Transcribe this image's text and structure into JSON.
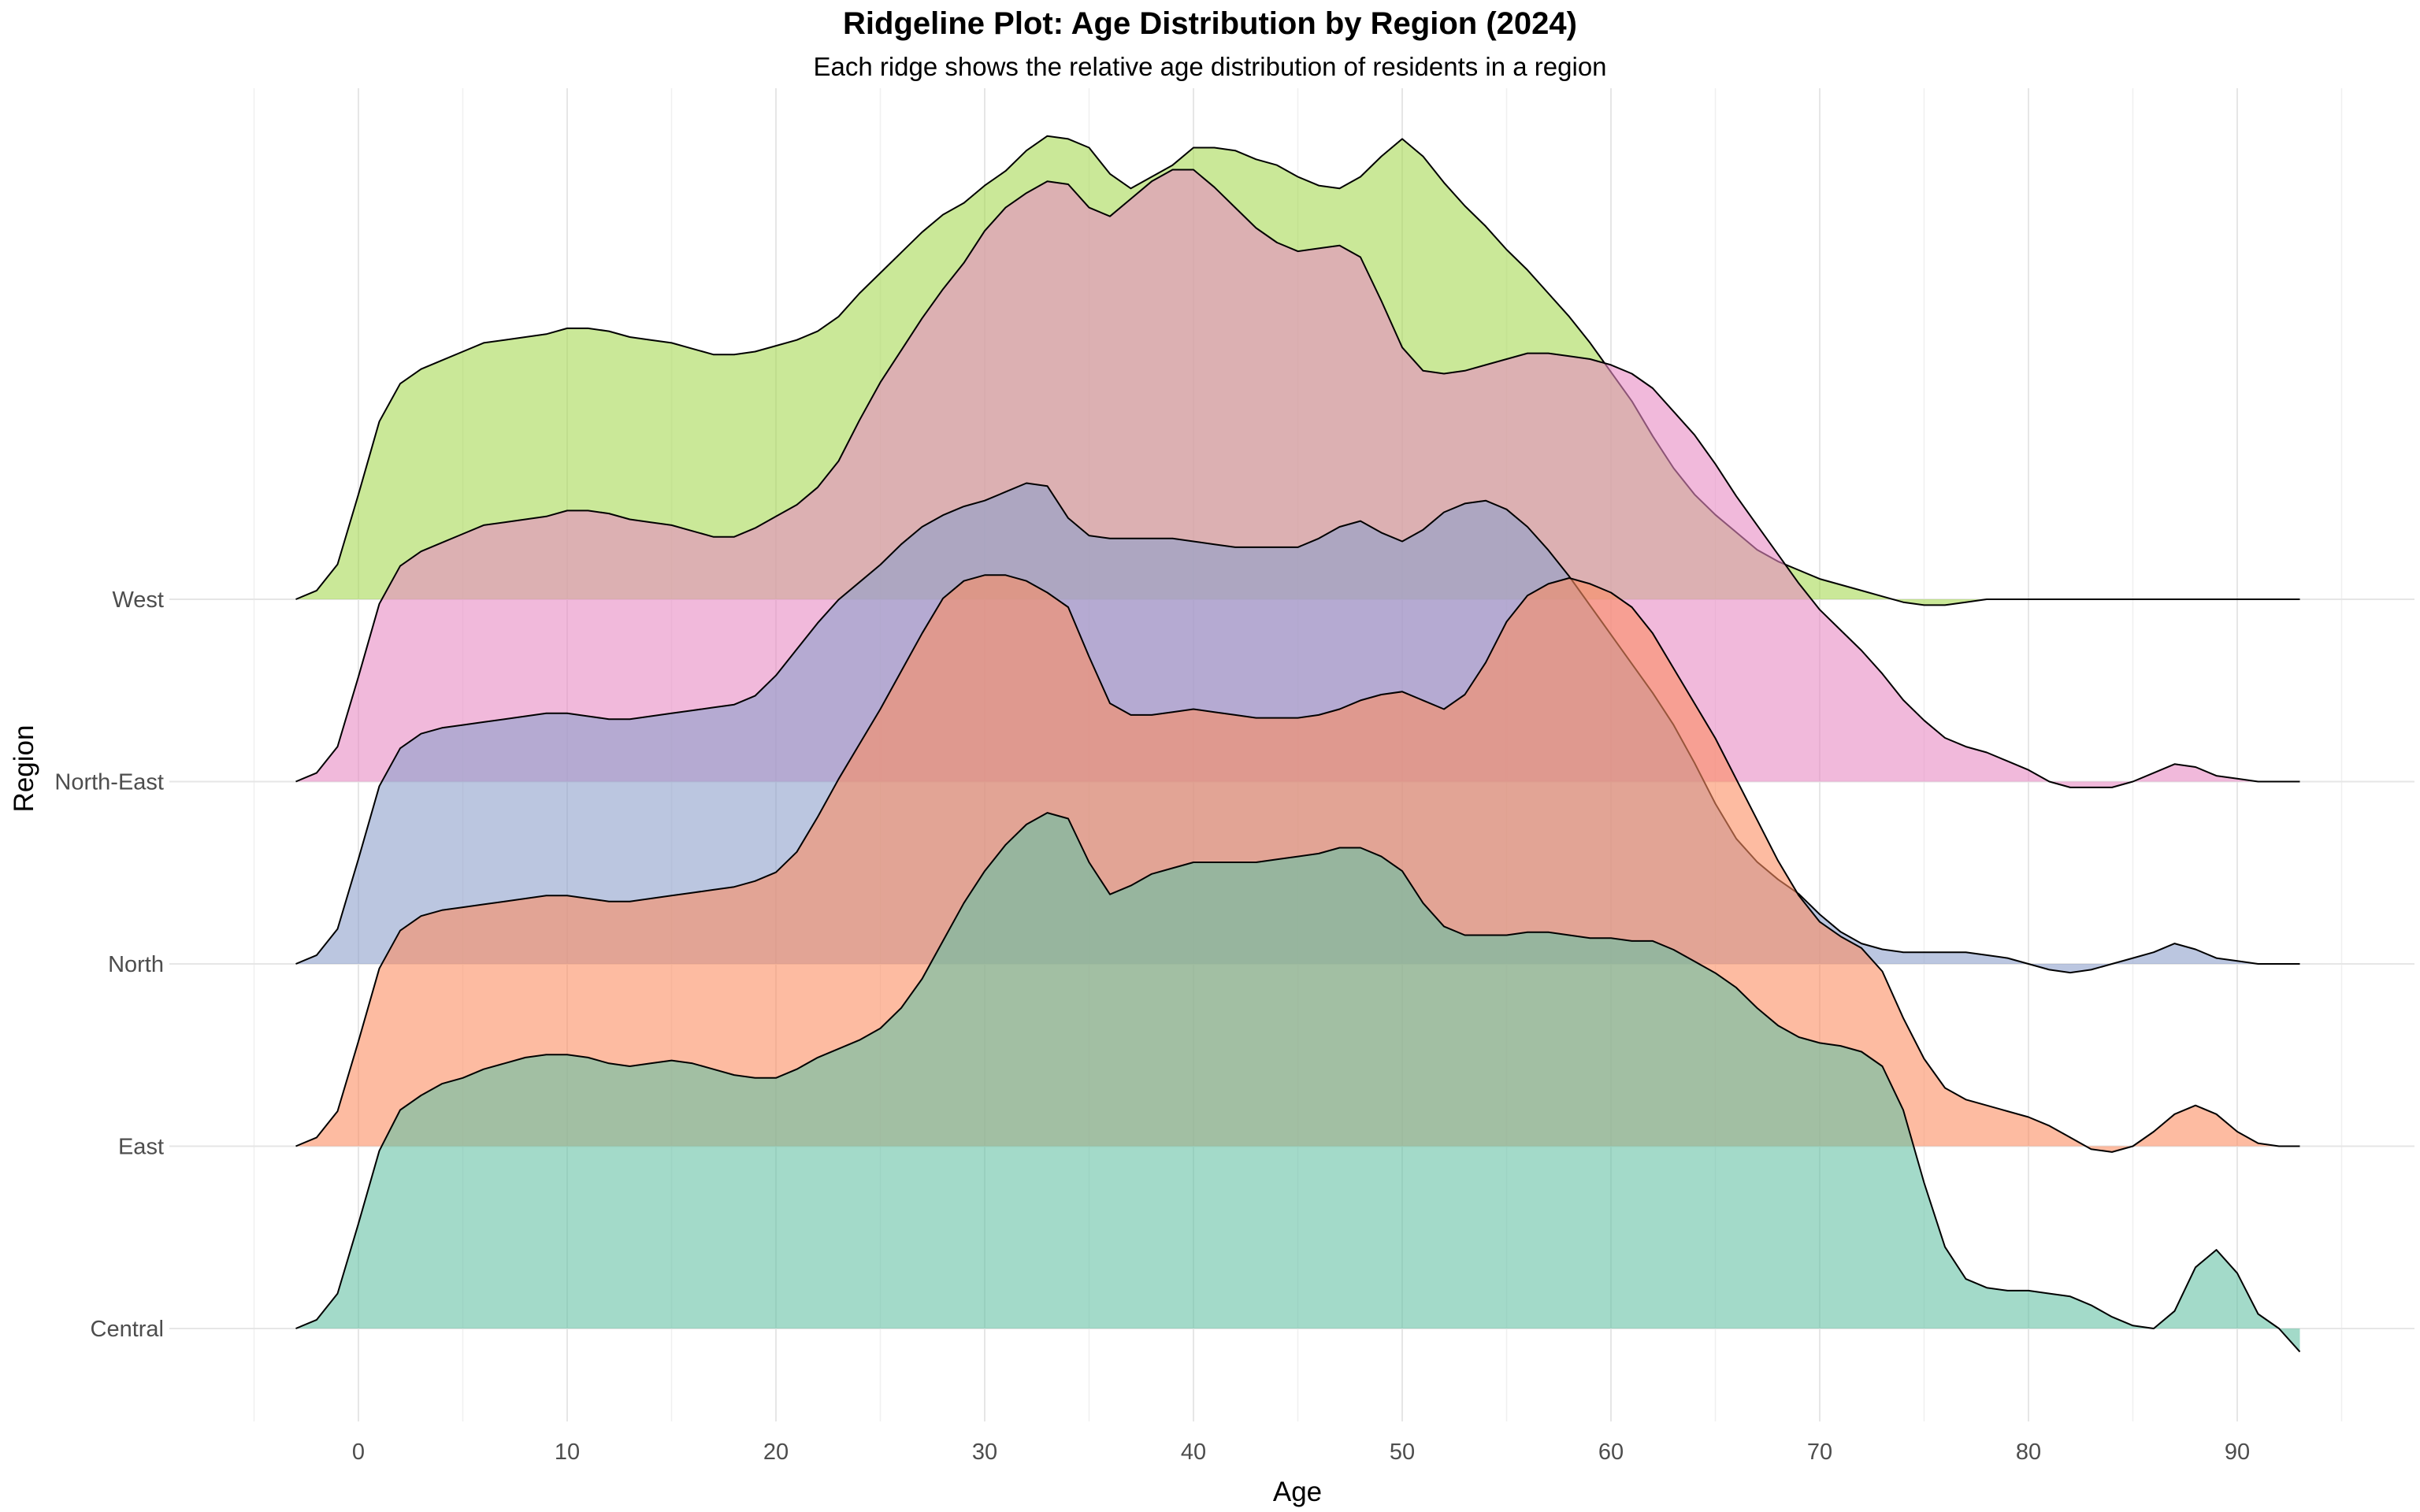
{
  "title": "Ridgeline Plot: Age Distribution by Region (2024)",
  "subtitle": "Each ridge shows the relative age distribution of residents in a region",
  "chart_data": {
    "type": "ridgeline",
    "xlabel": "Age",
    "ylabel": "Region",
    "x_ticks": [
      0,
      10,
      20,
      30,
      40,
      50,
      60,
      70,
      80,
      90
    ],
    "xlim": [
      -5,
      95
    ],
    "grid": true,
    "categories": [
      "Central",
      "East",
      "North",
      "North-East",
      "West"
    ],
    "x": [
      -3,
      -2,
      -1,
      0,
      1,
      2,
      3,
      4,
      5,
      6,
      7,
      8,
      9,
      10,
      11,
      12,
      13,
      14,
      15,
      16,
      17,
      18,
      19,
      20,
      21,
      22,
      23,
      24,
      25,
      26,
      27,
      28,
      29,
      30,
      31,
      32,
      33,
      34,
      35,
      36,
      37,
      38,
      39,
      40,
      41,
      42,
      43,
      44,
      45,
      46,
      47,
      48,
      49,
      50,
      51,
      52,
      53,
      54,
      55,
      56,
      57,
      58,
      59,
      60,
      61,
      62,
      63,
      64,
      65,
      66,
      67,
      68,
      69,
      70,
      71,
      72,
      73,
      74,
      75,
      76,
      77,
      78,
      79,
      80,
      81,
      82,
      83,
      84,
      85,
      86,
      87,
      88,
      89,
      90,
      91,
      92,
      93
    ],
    "series": [
      {
        "name": "Central",
        "color": "#66c2a5",
        "values": [
          0,
          0.03,
          0.12,
          0.36,
          0.61,
          0.75,
          0.8,
          0.84,
          0.86,
          0.89,
          0.91,
          0.93,
          0.94,
          0.94,
          0.93,
          0.91,
          0.9,
          0.91,
          0.92,
          0.91,
          0.89,
          0.87,
          0.86,
          0.86,
          0.89,
          0.93,
          0.96,
          0.99,
          1.03,
          1.1,
          1.2,
          1.33,
          1.46,
          1.57,
          1.66,
          1.73,
          1.77,
          1.75,
          1.6,
          1.49,
          1.52,
          1.56,
          1.58,
          1.6,
          1.6,
          1.6,
          1.6,
          1.61,
          1.62,
          1.63,
          1.65,
          1.65,
          1.62,
          1.57,
          1.46,
          1.38,
          1.35,
          1.35,
          1.35,
          1.36,
          1.36,
          1.35,
          1.34,
          1.34,
          1.33,
          1.33,
          1.3,
          1.26,
          1.22,
          1.17,
          1.1,
          1.04,
          1.0,
          0.98,
          0.97,
          0.95,
          0.9,
          0.75,
          0.5,
          0.28,
          0.17,
          0.14,
          0.13,
          0.13,
          0.12,
          0.11,
          0.08,
          0.04,
          0.01,
          0.0,
          0.06,
          0.21,
          0.27,
          0.19,
          0.05,
          0.0,
          -0.08
        ]
      },
      {
        "name": "East",
        "color": "#fc8d62",
        "values": [
          0,
          0.03,
          0.12,
          0.36,
          0.61,
          0.74,
          0.79,
          0.81,
          0.82,
          0.83,
          0.84,
          0.85,
          0.86,
          0.86,
          0.85,
          0.84,
          0.84,
          0.85,
          0.86,
          0.87,
          0.88,
          0.89,
          0.91,
          0.94,
          1.01,
          1.13,
          1.26,
          1.38,
          1.5,
          1.63,
          1.76,
          1.88,
          1.94,
          1.96,
          1.96,
          1.94,
          1.9,
          1.85,
          1.68,
          1.52,
          1.48,
          1.48,
          1.49,
          1.5,
          1.49,
          1.48,
          1.47,
          1.47,
          1.47,
          1.48,
          1.5,
          1.53,
          1.55,
          1.56,
          1.53,
          1.5,
          1.55,
          1.66,
          1.8,
          1.89,
          1.93,
          1.95,
          1.93,
          1.9,
          1.85,
          1.76,
          1.64,
          1.52,
          1.4,
          1.26,
          1.12,
          0.98,
          0.86,
          0.77,
          0.72,
          0.68,
          0.6,
          0.44,
          0.3,
          0.2,
          0.16,
          0.14,
          0.12,
          0.1,
          0.07,
          0.03,
          -0.01,
          -0.02,
          0.0,
          0.05,
          0.11,
          0.14,
          0.11,
          0.05,
          0.01,
          0.0,
          0.0
        ]
      },
      {
        "name": "North",
        "color": "#8da0cb",
        "values": [
          0,
          0.03,
          0.12,
          0.36,
          0.61,
          0.74,
          0.79,
          0.81,
          0.82,
          0.83,
          0.84,
          0.85,
          0.86,
          0.86,
          0.85,
          0.84,
          0.84,
          0.85,
          0.86,
          0.87,
          0.88,
          0.89,
          0.92,
          0.99,
          1.08,
          1.17,
          1.25,
          1.31,
          1.37,
          1.44,
          1.5,
          1.54,
          1.57,
          1.59,
          1.62,
          1.65,
          1.64,
          1.53,
          1.47,
          1.46,
          1.46,
          1.46,
          1.46,
          1.45,
          1.44,
          1.43,
          1.43,
          1.43,
          1.43,
          1.46,
          1.5,
          1.52,
          1.48,
          1.45,
          1.49,
          1.55,
          1.58,
          1.59,
          1.56,
          1.5,
          1.42,
          1.33,
          1.23,
          1.13,
          1.03,
          0.93,
          0.82,
          0.69,
          0.55,
          0.43,
          0.35,
          0.29,
          0.24,
          0.17,
          0.11,
          0.07,
          0.05,
          0.04,
          0.04,
          0.04,
          0.04,
          0.03,
          0.02,
          0.0,
          -0.02,
          -0.03,
          -0.02,
          0.0,
          0.02,
          0.04,
          0.07,
          0.05,
          0.02,
          0.01,
          0.0,
          0.0,
          0.0
        ]
      },
      {
        "name": "North-East",
        "color": "#e78ac3",
        "values": [
          0,
          0.03,
          0.12,
          0.36,
          0.61,
          0.74,
          0.79,
          0.82,
          0.85,
          0.88,
          0.89,
          0.9,
          0.91,
          0.93,
          0.93,
          0.92,
          0.9,
          0.89,
          0.88,
          0.86,
          0.84,
          0.84,
          0.87,
          0.91,
          0.95,
          1.01,
          1.1,
          1.24,
          1.37,
          1.48,
          1.59,
          1.69,
          1.78,
          1.89,
          1.97,
          2.02,
          2.06,
          2.05,
          1.97,
          1.94,
          2.0,
          2.06,
          2.1,
          2.1,
          2.04,
          1.97,
          1.9,
          1.85,
          1.82,
          1.83,
          1.84,
          1.8,
          1.65,
          1.49,
          1.41,
          1.4,
          1.41,
          1.43,
          1.45,
          1.47,
          1.47,
          1.46,
          1.45,
          1.43,
          1.4,
          1.35,
          1.27,
          1.19,
          1.09,
          0.98,
          0.88,
          0.78,
          0.68,
          0.59,
          0.52,
          0.45,
          0.37,
          0.28,
          0.21,
          0.15,
          0.12,
          0.1,
          0.07,
          0.04,
          0.0,
          -0.02,
          -0.02,
          -0.02,
          0.0,
          0.03,
          0.06,
          0.05,
          0.02,
          0.01,
          0.0,
          0.0,
          0.0
        ]
      },
      {
        "name": "West",
        "color": "#a6d854",
        "values": [
          0,
          0.03,
          0.12,
          0.36,
          0.61,
          0.74,
          0.79,
          0.82,
          0.85,
          0.88,
          0.89,
          0.9,
          0.91,
          0.93,
          0.93,
          0.92,
          0.9,
          0.89,
          0.88,
          0.86,
          0.84,
          0.84,
          0.85,
          0.87,
          0.89,
          0.92,
          0.97,
          1.05,
          1.12,
          1.19,
          1.26,
          1.32,
          1.36,
          1.42,
          1.47,
          1.54,
          1.59,
          1.58,
          1.55,
          1.46,
          1.41,
          1.45,
          1.49,
          1.55,
          1.55,
          1.54,
          1.51,
          1.49,
          1.45,
          1.42,
          1.41,
          1.45,
          1.52,
          1.58,
          1.52,
          1.43,
          1.35,
          1.28,
          1.2,
          1.13,
          1.05,
          0.97,
          0.88,
          0.78,
          0.68,
          0.56,
          0.45,
          0.36,
          0.29,
          0.23,
          0.17,
          0.13,
          0.1,
          0.07,
          0.05,
          0.03,
          0.01,
          -0.01,
          -0.02,
          -0.02,
          -0.01,
          0.0,
          0.0,
          0.0,
          0.0,
          0.0,
          0.0,
          0.0,
          0.0,
          0.0,
          0.0,
          0.0,
          0.0,
          0.0,
          0.0,
          0.0,
          0.0
        ]
      }
    ]
  }
}
